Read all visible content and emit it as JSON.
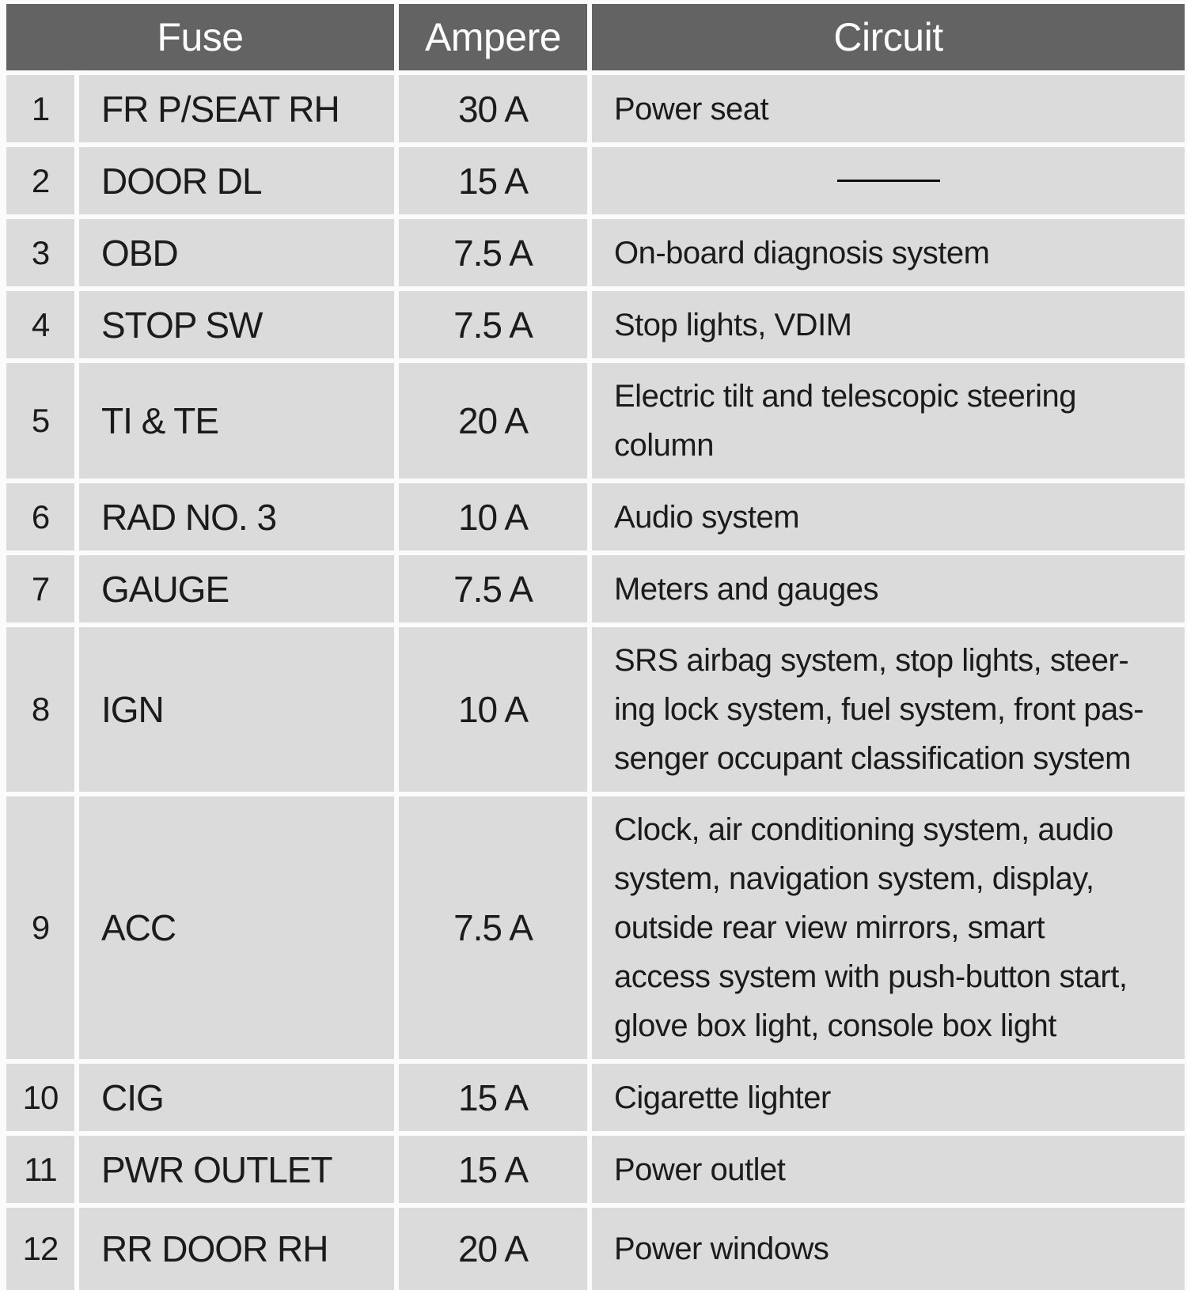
{
  "table": {
    "title": "fuse-box-table",
    "headers": {
      "fuse": "Fuse",
      "ampere": "Ampere",
      "circuit": "Circuit"
    },
    "rows": [
      {
        "no": "1",
        "fuse": "FR P/SEAT RH",
        "ampere": "30 A",
        "circuit": "Power seat"
      },
      {
        "no": "2",
        "fuse": "DOOR DL",
        "ampere": "15 A",
        "circuit": ""
      },
      {
        "no": "3",
        "fuse": "OBD",
        "ampere": "7.5 A",
        "circuit": "On-board diagnosis system"
      },
      {
        "no": "4",
        "fuse": "STOP SW",
        "ampere": "7.5 A",
        "circuit": "Stop lights, VDIM"
      },
      {
        "no": "5",
        "fuse": "TI & TE",
        "ampere": "20 A",
        "circuit": "Electric tilt and telescopic steering\ncolumn"
      },
      {
        "no": "6",
        "fuse": "RAD NO. 3",
        "ampere": "10 A",
        "circuit": "Audio system"
      },
      {
        "no": "7",
        "fuse": "GAUGE",
        "ampere": "7.5 A",
        "circuit": "Meters and gauges"
      },
      {
        "no": "8",
        "fuse": "IGN",
        "ampere": "10 A",
        "circuit": "SRS airbag system, stop lights, steer-\ning lock system, fuel system, front pas-\nsenger occupant classification system"
      },
      {
        "no": "9",
        "fuse": "ACC",
        "ampere": "7.5 A",
        "circuit": "Clock, air conditioning system, audio\nsystem, navigation system, display,\noutside rear view mirrors, smart\naccess system with push-button start,\nglove box light, console box light"
      },
      {
        "no": "10",
        "fuse": "CIG",
        "ampere": "15 A",
        "circuit": "Cigarette lighter"
      },
      {
        "no": "11",
        "fuse": "PWR OUTLET",
        "ampere": "15 A",
        "circuit": "Power outlet"
      },
      {
        "no": "12",
        "fuse": "RR DOOR RH",
        "ampere": "20 A",
        "circuit": "Power windows"
      }
    ],
    "colors": {
      "header_bg": "#636363",
      "header_text": "#fdfdfd",
      "cell_bg": "#dbdbdb",
      "gutter": "#fbfbfb",
      "text": "#1b1b1b"
    }
  }
}
